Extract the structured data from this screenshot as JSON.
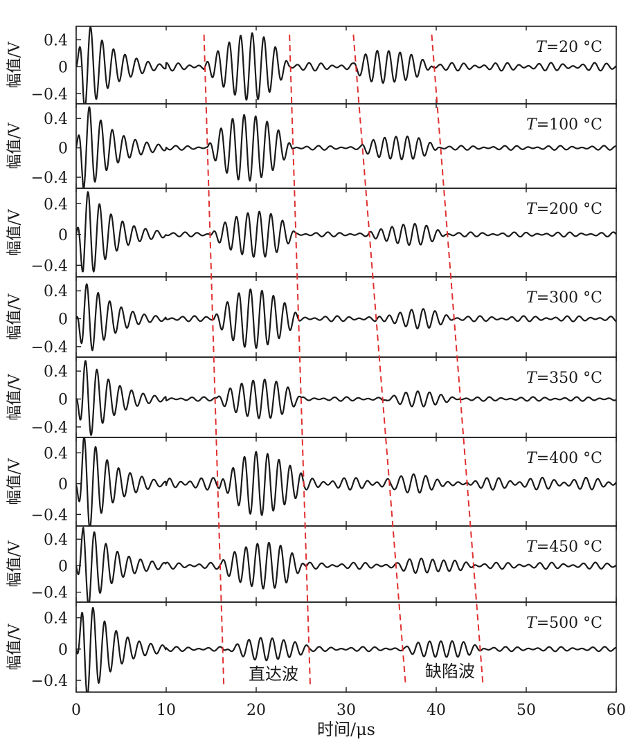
{
  "chart_data": {
    "type": "line",
    "xlabel": "时间/μs",
    "ylabel": "幅值/V",
    "xlim": [
      0,
      60
    ],
    "ylim": [
      -0.55,
      0.6
    ],
    "x_ticks": [
      "0",
      "10",
      "20",
      "30",
      "40",
      "50",
      "60"
    ],
    "y_ticks": [
      "0.4",
      "0",
      "−0.4"
    ],
    "panels": [
      {
        "temp": "20",
        "label_prefix": "T",
        "label_suffix": "=20 °C",
        "direct_start": 14.2,
        "direct_end": 23.7,
        "defect_start": 30.8,
        "defect_end": 39.5,
        "direct_amp": 0.48,
        "defect_amp": 0.25,
        "noise_amp": 0.06,
        "ring_amp": 0.6
      },
      {
        "temp": "100",
        "label_prefix": "T",
        "label_suffix": "=100 °C",
        "direct_start": 14.6,
        "direct_end": 24.0,
        "defect_start": 31.6,
        "defect_end": 40.2,
        "direct_amp": 0.45,
        "defect_amp": 0.15,
        "noise_amp": 0.03,
        "ring_amp": 0.55
      },
      {
        "temp": "200",
        "label_prefix": "T",
        "label_suffix": "=200 °C",
        "direct_start": 15.0,
        "direct_end": 24.4,
        "defect_start": 32.4,
        "defect_end": 41.0,
        "direct_amp": 0.3,
        "defect_amp": 0.12,
        "noise_amp": 0.03,
        "ring_amp": 0.55
      },
      {
        "temp": "300",
        "label_prefix": "T",
        "label_suffix": "=300 °C",
        "direct_start": 15.3,
        "direct_end": 24.8,
        "defect_start": 33.3,
        "defect_end": 41.9,
        "direct_amp": 0.4,
        "defect_amp": 0.12,
        "noise_amp": 0.04,
        "ring_amp": 0.5
      },
      {
        "temp": "350",
        "label_prefix": "T",
        "label_suffix": "=350 °C",
        "direct_start": 15.6,
        "direct_end": 25.1,
        "defect_start": 34.0,
        "defect_end": 42.6,
        "direct_amp": 0.3,
        "defect_amp": 0.12,
        "noise_amp": 0.03,
        "ring_amp": 0.55
      },
      {
        "temp": "400",
        "label_prefix": "T",
        "label_suffix": "=400 °C",
        "direct_start": 15.9,
        "direct_end": 25.4,
        "defect_start": 34.9,
        "defect_end": 43.5,
        "direct_amp": 0.35,
        "defect_amp": 0.13,
        "noise_amp": 0.08,
        "ring_amp": 0.6
      },
      {
        "temp": "450",
        "label_prefix": "T",
        "label_suffix": "=450 °C",
        "direct_start": 16.1,
        "direct_end": 25.7,
        "defect_start": 35.7,
        "defect_end": 44.3,
        "direct_amp": 0.35,
        "defect_amp": 0.1,
        "noise_amp": 0.05,
        "ring_amp": 0.6
      },
      {
        "temp": "500",
        "label_prefix": "T",
        "label_suffix": "=500 °C",
        "direct_start": 16.4,
        "direct_end": 26.0,
        "defect_start": 36.6,
        "defect_end": 45.2,
        "direct_amp": 0.15,
        "defect_amp": 0.1,
        "noise_amp": 0.03,
        "ring_amp": 0.6
      }
    ],
    "annotations": {
      "direct_wave": "直达波",
      "defect_wave": "缺陷波"
    }
  },
  "colors": {
    "signal": "#1a1a1a",
    "guide_lines": "#e03030"
  }
}
